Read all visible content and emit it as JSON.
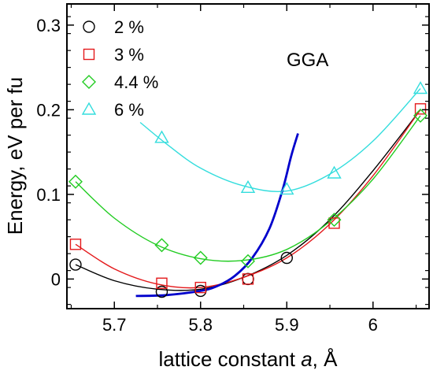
{
  "chart_data": {
    "type": "scatter",
    "xlabel_prefix": "lattice constant ",
    "xlabel_var": "a",
    "xlabel_suffix": ", Å",
    "ylabel": "Energy, eV per fu",
    "xlim": [
      5.645,
      6.065
    ],
    "ylim": [
      -0.035,
      0.325
    ],
    "xticks": [
      5.7,
      5.8,
      5.9,
      6.0
    ],
    "xtick_labels": [
      "5.7",
      "5.8",
      "5.9",
      "6"
    ],
    "yticks": [
      0,
      0.1,
      0.2,
      0.3
    ],
    "ytick_labels": [
      "0",
      "0.1",
      "0.2",
      "0.3"
    ],
    "annotation": "GGA",
    "legend_position": "top-left",
    "series": [
      {
        "name": "2 %",
        "marker": "circle",
        "color": "#000000",
        "points": [
          [
            5.655,
            0.017
          ],
          [
            5.755,
            -0.015
          ],
          [
            5.8,
            -0.014
          ],
          [
            5.855,
            0.0
          ],
          [
            5.9,
            0.025
          ]
        ],
        "fit": [
          [
            5.655,
            0.017
          ],
          [
            5.7,
            -0.002
          ],
          [
            5.75,
            -0.012
          ],
          [
            5.8,
            -0.012
          ],
          [
            5.85,
            0.002
          ],
          [
            5.9,
            0.028
          ],
          [
            5.95,
            0.07
          ],
          [
            6.0,
            0.128
          ],
          [
            6.055,
            0.2
          ]
        ]
      },
      {
        "name": "3 %",
        "marker": "square",
        "color": "#e41a1c",
        "points": [
          [
            5.655,
            0.041
          ],
          [
            5.755,
            -0.005
          ],
          [
            5.8,
            -0.01
          ],
          [
            5.855,
            0.0
          ],
          [
            5.955,
            0.066
          ],
          [
            6.055,
            0.201
          ]
        ],
        "fit": [
          [
            5.655,
            0.041
          ],
          [
            5.7,
            0.012
          ],
          [
            5.75,
            -0.006
          ],
          [
            5.8,
            -0.01
          ],
          [
            5.85,
            0.002
          ],
          [
            5.9,
            0.025
          ],
          [
            5.95,
            0.065
          ],
          [
            6.0,
            0.122
          ],
          [
            6.055,
            0.2
          ]
        ]
      },
      {
        "name": "4.4 %",
        "marker": "diamond",
        "color": "#22cc22",
        "points": [
          [
            5.655,
            0.115
          ],
          [
            5.755,
            0.04
          ],
          [
            5.8,
            0.025
          ],
          [
            5.855,
            0.021
          ],
          [
            5.955,
            0.07
          ],
          [
            6.055,
            0.193
          ]
        ],
        "fit": [
          [
            5.655,
            0.115
          ],
          [
            5.7,
            0.072
          ],
          [
            5.75,
            0.04
          ],
          [
            5.8,
            0.024
          ],
          [
            5.85,
            0.022
          ],
          [
            5.9,
            0.035
          ],
          [
            5.95,
            0.068
          ],
          [
            6.0,
            0.118
          ],
          [
            6.055,
            0.193
          ]
        ]
      },
      {
        "name": "6 %",
        "marker": "triangle",
        "color": "#33dddd",
        "points": [
          [
            5.755,
            0.167
          ],
          [
            5.855,
            0.108
          ],
          [
            5.9,
            0.106
          ],
          [
            5.955,
            0.125
          ],
          [
            6.055,
            0.225
          ]
        ],
        "fit": [
          [
            5.73,
            0.185
          ],
          [
            5.76,
            0.16
          ],
          [
            5.8,
            0.131
          ],
          [
            5.85,
            0.11
          ],
          [
            5.9,
            0.104
          ],
          [
            5.95,
            0.124
          ],
          [
            6.0,
            0.163
          ],
          [
            6.055,
            0.225
          ]
        ]
      }
    ],
    "curve": {
      "color": "#0000cc",
      "points": [
        [
          5.725,
          -0.02
        ],
        [
          5.76,
          -0.019
        ],
        [
          5.8,
          -0.014
        ],
        [
          5.82,
          -0.008
        ],
        [
          5.84,
          0.004
        ],
        [
          5.86,
          0.025
        ],
        [
          5.88,
          0.06
        ],
        [
          5.895,
          0.105
        ],
        [
          5.905,
          0.145
        ],
        [
          5.913,
          0.172
        ]
      ]
    }
  }
}
